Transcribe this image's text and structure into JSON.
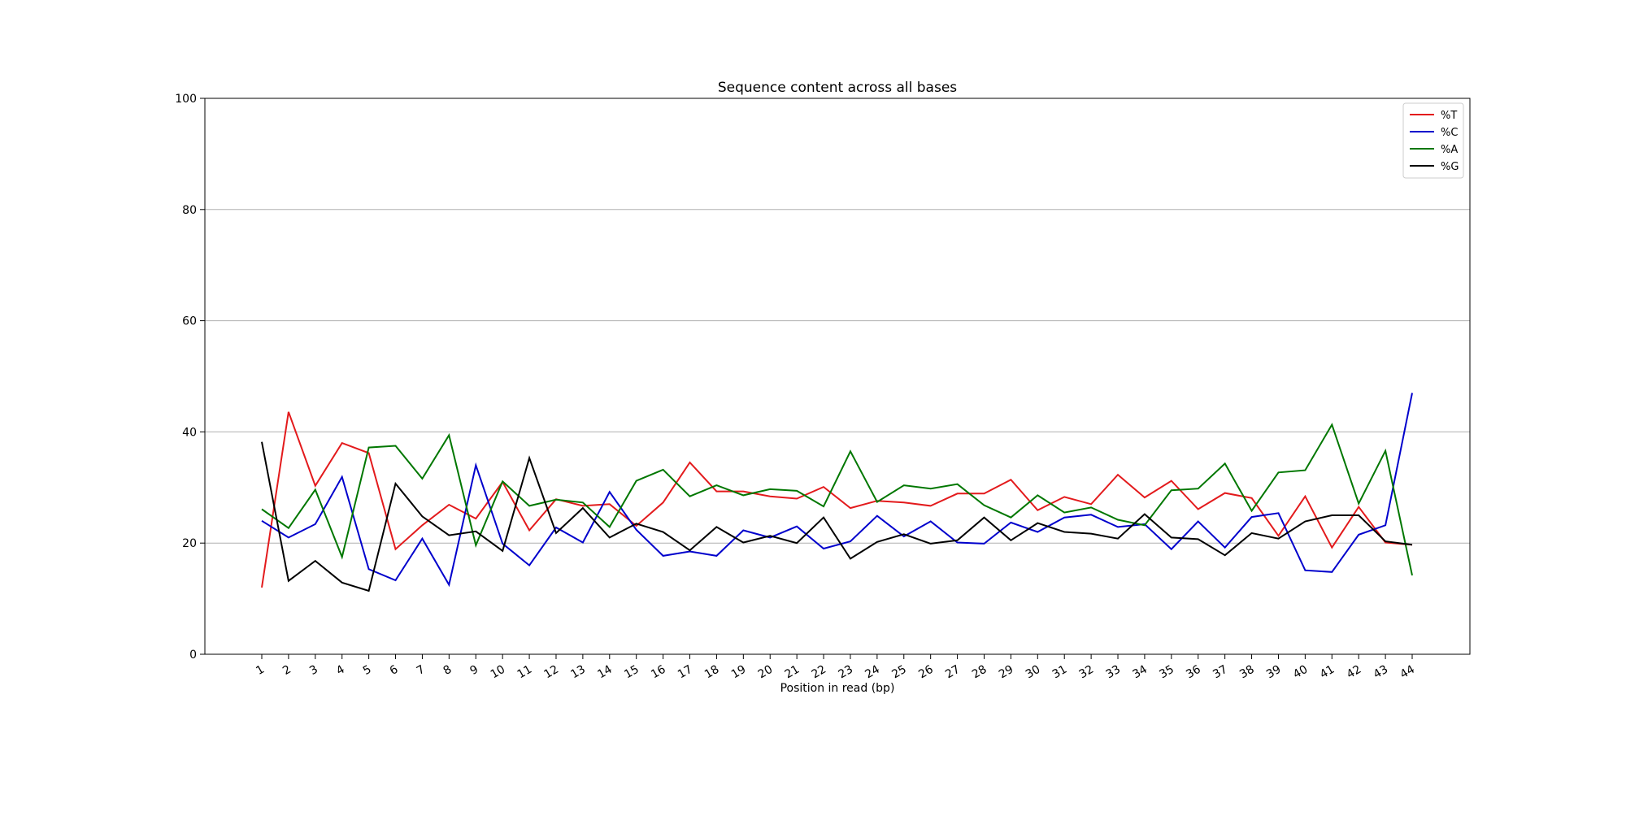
{
  "chart_data": {
    "type": "line",
    "title": "Sequence content across all bases",
    "xlabel": "Position in read (bp)",
    "ylabel": "",
    "ylim": [
      0,
      100
    ],
    "yticks": [
      0,
      20,
      40,
      60,
      80,
      100
    ],
    "grid": "horizontal",
    "legend_position": "top-right",
    "categories": [
      "1",
      "2",
      "3",
      "4",
      "5",
      "6",
      "7",
      "8",
      "9",
      "10",
      "11",
      "12",
      "13",
      "14",
      "15",
      "16",
      "17",
      "18",
      "19",
      "20",
      "21",
      "22",
      "23",
      "24",
      "25",
      "26",
      "27",
      "28",
      "29",
      "30",
      "31",
      "32",
      "33",
      "34",
      "35",
      "36",
      "37",
      "38",
      "39",
      "40",
      "41",
      "42",
      "43",
      "44"
    ],
    "series": [
      {
        "name": "%T",
        "color": "#e31a1c",
        "values": [
          12.0,
          43.6,
          30.3,
          38.0,
          36.2,
          18.9,
          23.2,
          26.9,
          24.4,
          31.0,
          22.3,
          27.9,
          26.7,
          27.0,
          23.1,
          27.3,
          34.5,
          29.3,
          29.3,
          28.4,
          28.0,
          30.1,
          26.3,
          27.6,
          27.3,
          26.7,
          28.9,
          28.9,
          31.4,
          25.9,
          28.3,
          27.0,
          32.3,
          28.2,
          31.2,
          26.1,
          29.0,
          28.1,
          21.3,
          28.4,
          19.2,
          26.5,
          20.1,
          19.7
        ]
      },
      {
        "name": "%C",
        "color": "#0000cc",
        "values": [
          24.0,
          21.0,
          23.4,
          31.9,
          15.3,
          13.3,
          20.8,
          12.5,
          34.0,
          19.9,
          16.0,
          22.8,
          20.1,
          29.2,
          22.4,
          17.7,
          18.5,
          17.7,
          22.3,
          21.0,
          23.0,
          19.0,
          20.3,
          24.9,
          21.2,
          23.9,
          20.1,
          19.9,
          23.7,
          22.0,
          24.6,
          25.1,
          22.9,
          23.4,
          18.9,
          23.9,
          19.2,
          24.7,
          25.4,
          15.1,
          14.8,
          21.5,
          23.2,
          47.0
        ]
      },
      {
        "name": "%A",
        "color": "#007700",
        "values": [
          26.1,
          22.7,
          29.6,
          17.5,
          37.2,
          37.5,
          31.6,
          39.4,
          19.6,
          31.1,
          26.7,
          27.8,
          27.3,
          22.9,
          31.2,
          33.2,
          28.4,
          30.4,
          28.6,
          29.7,
          29.4,
          26.6,
          36.5,
          27.4,
          30.4,
          29.8,
          30.6,
          26.8,
          24.6,
          28.6,
          25.5,
          26.4,
          24.2,
          23.2,
          29.5,
          29.8,
          34.3,
          25.8,
          32.7,
          33.1,
          41.3,
          27.1,
          36.6,
          14.2
        ]
      },
      {
        "name": "%G",
        "color": "#000000",
        "values": [
          38.2,
          13.2,
          16.8,
          12.9,
          11.4,
          30.7,
          24.8,
          21.4,
          22.1,
          18.6,
          35.3,
          21.8,
          26.3,
          21.0,
          23.5,
          22.0,
          18.7,
          22.9,
          20.1,
          21.3,
          20.0,
          24.6,
          17.2,
          20.2,
          21.6,
          19.9,
          20.5,
          24.6,
          20.5,
          23.6,
          22.0,
          21.7,
          20.8,
          25.2,
          21.0,
          20.7,
          17.8,
          21.8,
          20.8,
          23.9,
          25.0,
          25.0,
          20.3,
          19.7
        ]
      }
    ]
  }
}
